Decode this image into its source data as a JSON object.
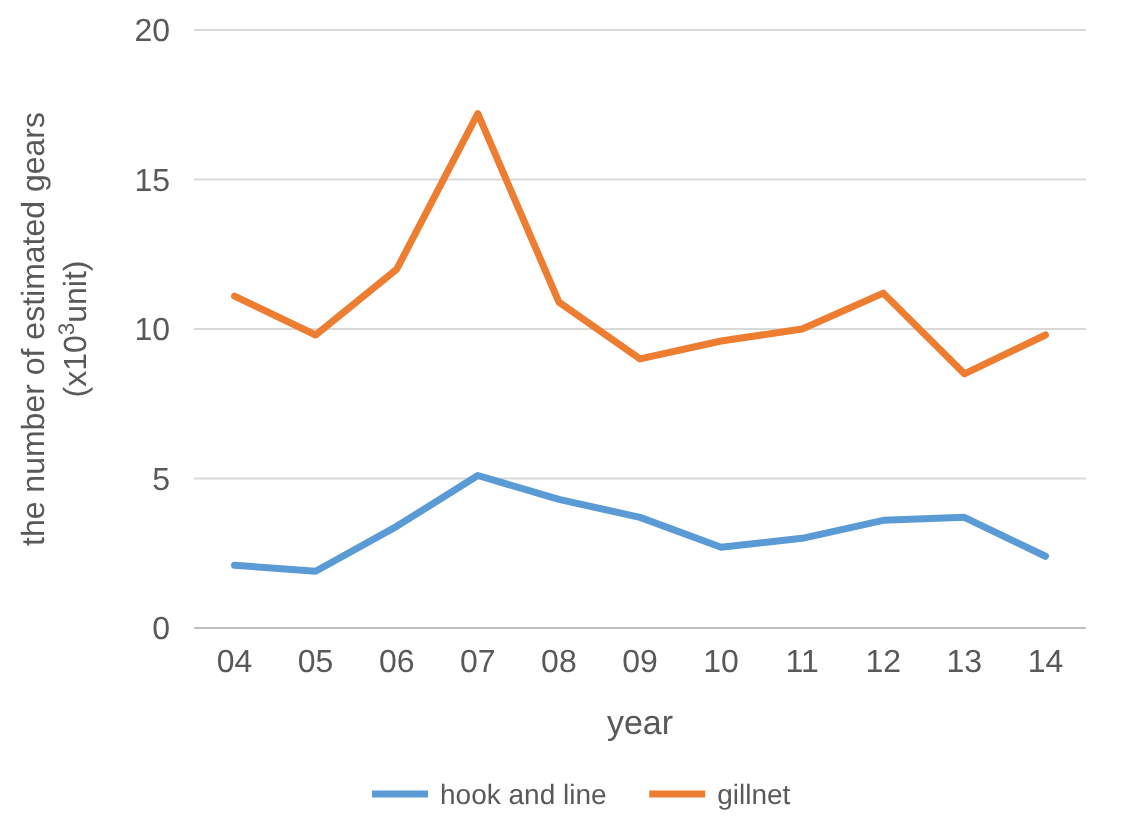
{
  "chart_data": {
    "type": "line",
    "xlabel": "year",
    "ylabel": "the number of estimated gears\n(x10$^{3}$unit)",
    "categories": [
      "04",
      "05",
      "06",
      "07",
      "08",
      "09",
      "10",
      "11",
      "12",
      "13",
      "14"
    ],
    "series": [
      {
        "name": "hook and line",
        "color": "#5b9bd5",
        "values": [
          2.1,
          1.9,
          3.4,
          5.1,
          4.3,
          3.7,
          2.7,
          3.0,
          3.6,
          3.7,
          2.4
        ]
      },
      {
        "name": "gillnet",
        "color": "#ed7d31",
        "values": [
          11.1,
          9.8,
          12.0,
          17.2,
          10.9,
          9.0,
          9.6,
          10.0,
          11.2,
          8.5,
          9.8
        ]
      }
    ],
    "ylim": [
      0,
      20
    ],
    "yticks": [
      0,
      5,
      10,
      15,
      20
    ],
    "grid": "y",
    "legend": "bottom",
    "marker": "none",
    "line_style": "solid"
  }
}
